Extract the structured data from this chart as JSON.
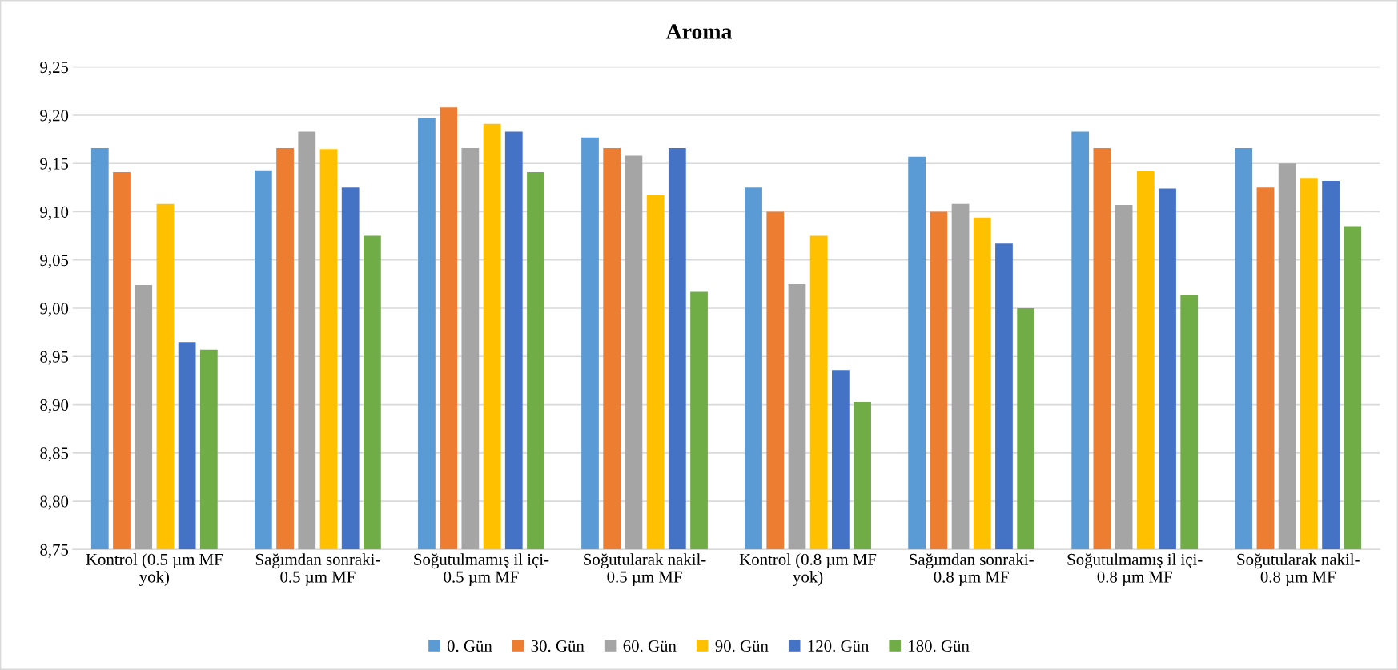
{
  "chart_data": {
    "type": "bar",
    "title": "Aroma",
    "categories": [
      "Kontrol (0.5 µm MF\nyok)",
      "Sağımdan sonraki-\n0.5 µm MF",
      "Soğutulmamış il içi-\n0.5 µm MF",
      "Soğutularak nakil-\n0.5 µm MF",
      "Kontrol (0.8 µm MF\nyok)",
      "Sağımdan sonraki-\n0.8 µm MF",
      "Soğutulmamış il içi-\n0.8 µm MF",
      "Soğutularak nakil-\n0.8 µm MF"
    ],
    "series": [
      {
        "name": "0. Gün",
        "color": "#5b9bd5",
        "values": [
          9.166,
          9.143,
          9.197,
          9.177,
          9.125,
          9.157,
          9.183,
          9.166
        ]
      },
      {
        "name": "30. Gün",
        "color": "#ed7d31",
        "values": [
          9.141,
          9.166,
          9.208,
          9.166,
          9.1,
          9.1,
          9.166,
          9.125
        ]
      },
      {
        "name": "60. Gün",
        "color": "#a5a5a5",
        "values": [
          9.024,
          9.183,
          9.166,
          9.158,
          9.025,
          9.108,
          9.107,
          9.15
        ]
      },
      {
        "name": "90. Gün",
        "color": "#ffc000",
        "values": [
          9.108,
          9.165,
          9.191,
          9.117,
          9.075,
          9.094,
          9.142,
          9.135
        ]
      },
      {
        "name": "120. Gün",
        "color": "#4472c4",
        "values": [
          8.965,
          9.125,
          9.183,
          9.166,
          8.936,
          9.067,
          9.124,
          9.132
        ]
      },
      {
        "name": "180. Gün",
        "color": "#70ad47",
        "values": [
          8.957,
          9.075,
          9.141,
          9.017,
          8.903,
          9.0,
          9.014,
          9.085
        ]
      }
    ],
    "ylim": [
      8.75,
      9.25
    ],
    "yticks": [
      {
        "value": 8.75,
        "label": "8,75"
      },
      {
        "value": 8.8,
        "label": "8,80"
      },
      {
        "value": 8.85,
        "label": "8,85"
      },
      {
        "value": 8.9,
        "label": "8,90"
      },
      {
        "value": 8.95,
        "label": "8,95"
      },
      {
        "value": 9.0,
        "label": "9,00"
      },
      {
        "value": 9.05,
        "label": "9,05"
      },
      {
        "value": 9.1,
        "label": "9,10"
      },
      {
        "value": 9.15,
        "label": "9,15"
      },
      {
        "value": 9.2,
        "label": "9,20"
      },
      {
        "value": 9.25,
        "label": "9,25"
      }
    ],
    "grid": "y",
    "legend": "bottom"
  }
}
